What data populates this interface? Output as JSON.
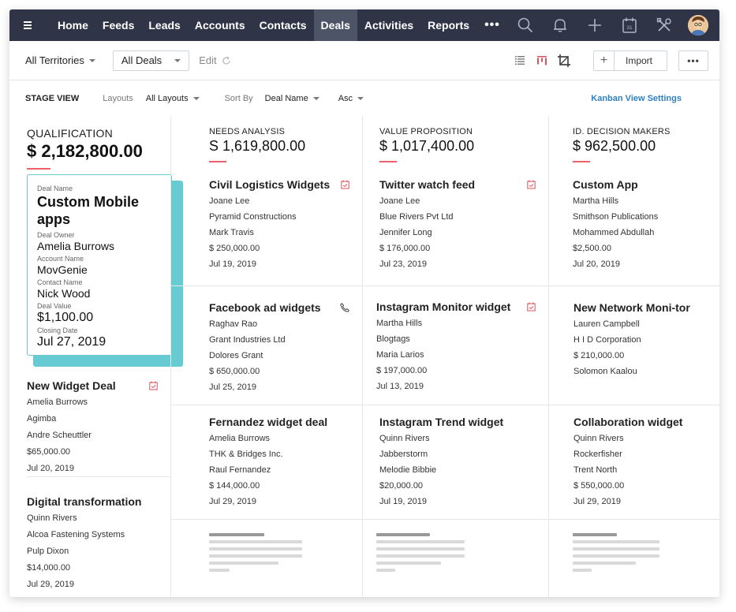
{
  "nav": {
    "items": [
      "Home",
      "Feeds",
      "Leads",
      "Accounts",
      "Contacts",
      "Deals",
      "Activities",
      "Reports"
    ],
    "active": "Deals",
    "more": "•••",
    "calendar_day": "31"
  },
  "toolbar": {
    "territory": "All Territories",
    "deals_filter": "All Deals",
    "edit_label": "Edit",
    "import_label": "Import",
    "more_label": "•••"
  },
  "stagebar": {
    "title": "STAGE VIEW",
    "layouts_label": "Layouts",
    "layouts_value": "All Layouts",
    "sort_label": "Sort By",
    "sort_value": "Deal Name",
    "order_value": "Asc",
    "settings_link": "Kanban View Settings"
  },
  "columns": [
    {
      "stage": "QUALIFICATION",
      "amount": "$ 2,182,800.00",
      "detail": {
        "deal_name_label": "Deal Name",
        "deal_name": "Custom Mobile apps",
        "owner_label": "Deal Owner",
        "owner": "Amelia Burrows",
        "account_label": "Account Name",
        "account": "MovGenie",
        "contact_label": "Contact Name",
        "contact": "Nick Wood",
        "value_label": "Deal Value",
        "value": "$1,100.00",
        "closing_label": "Closing Date",
        "closing": "Jul 27, 2019"
      },
      "cards": [
        {
          "title": "New Widget Deal",
          "lines": [
            "Amelia Burrows",
            "Agimba",
            "Andre Scheuttler",
            "$65,000.00",
            "Jul 20, 2019"
          ],
          "icon": "calendar-icon"
        },
        {
          "title": "Digital transformation",
          "lines": [
            "Quinn Rivers",
            "Alcoa Fastening Systems",
            "Pulp Dixon",
            "$14,000.00",
            "Jul 29, 2019"
          ],
          "icon": ""
        }
      ]
    },
    {
      "stage": "NEEDS ANALYSIS",
      "amount": "S 1,619,800.00",
      "cards": [
        {
          "title": "Civil Logistics Widgets",
          "lines": [
            "Joane Lee",
            "Pyramid Constructions",
            "Mark Travis",
            "$ 250,000.00",
            "Jul 19, 2019"
          ],
          "icon": "calendar-icon"
        },
        {
          "title": "Facebook ad widgets",
          "lines": [
            "Raghav Rao",
            "Grant Industries Ltd",
            "Dolores Grant",
            "$ 650,000.00",
            "Jul 25, 2019"
          ],
          "icon": "phone-icon"
        },
        {
          "title": "Fernandez widget deal",
          "lines": [
            "Amelia Burrows",
            "THK & Bridges Inc.",
            "Raul Fernandez",
            "$ 144,000.00",
            "Jul 29, 2019"
          ],
          "icon": ""
        }
      ]
    },
    {
      "stage": "VALUE PROPOSITION",
      "amount": "$ 1,017,400.00",
      "cards": [
        {
          "title": "Twitter watch feed",
          "lines": [
            "Joane Lee",
            "Blue Rivers Pvt Ltd",
            "Jennifer Long",
            "$ 176,000.00",
            "Jul 23, 2019"
          ],
          "icon": "calendar-icon"
        },
        {
          "title": "Instagram Monitor widget",
          "lines": [
            "Martha Hills",
            "Blogtags",
            "Maria Larios",
            "$ 197,000.00",
            "Jul 13, 2019"
          ],
          "icon": "calendar-icon"
        },
        {
          "title": "Instagram Trend widget",
          "lines": [
            "Quinn Rivers",
            "Jabberstorm",
            "Melodie Bibbie",
            "$20,000.00",
            "Jul 19, 2019"
          ],
          "icon": ""
        }
      ]
    },
    {
      "stage": "ID. DECISION MAKERS",
      "amount": "$ 962,500.00",
      "cards": [
        {
          "title": "Custom App",
          "lines": [
            "Martha Hills",
            "Smithson Publications",
            "Mohammed Abdullah",
            "$2,500.00",
            "Jul 20, 2019"
          ],
          "icon": ""
        },
        {
          "title": "New Network Moni-tor",
          "lines": [
            "Lauren Campbell",
            "H I D Corporation",
            "$ 210,000.00",
            "Solomon Kaalou"
          ],
          "icon": ""
        },
        {
          "title": "Collaboration widget",
          "lines": [
            "Quinn Rivers",
            "Rockerfisher",
            "Trent North",
            "$ 550,000.00",
            "Jul 29, 2019"
          ],
          "icon": ""
        }
      ]
    }
  ],
  "colors": {
    "nav_bg": "#2f3546",
    "accent_red": "#f0606a",
    "detail_border": "#67cbd3",
    "link_blue": "#2f7fc1"
  }
}
